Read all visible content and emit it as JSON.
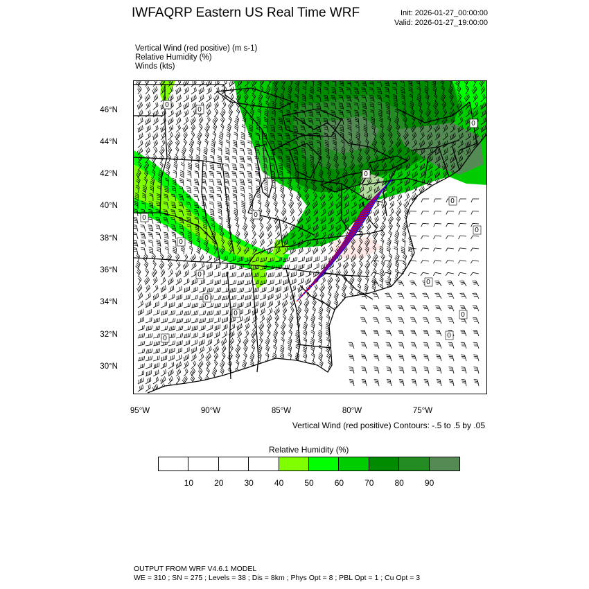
{
  "header": {
    "title": "IWFAQRP Eastern US Real Time WRF",
    "init": "Init: 2026-01-27_00:00:00",
    "valid": "Valid: 2026-01-27_19:00:00"
  },
  "fields": {
    "vertical_wind": "Vertical Wind (red positive)   (m s-1)",
    "rh": "Relative Humidity   (%)",
    "winds": "Winds   (kts)"
  },
  "map": {
    "lat_labels": [
      "46°N",
      "44°N",
      "42°N",
      "40°N",
      "38°N",
      "36°N",
      "34°N",
      "32°N",
      "30°N"
    ],
    "lon_labels": [
      "95°W",
      "90°W",
      "85°W",
      "80°W",
      "75°W"
    ],
    "contour_note": "Vertical Wind (red positive) Contours: -.5 to .5 by .05",
    "zero_label": "0",
    "colors": {
      "rh_40": "#7fff00",
      "rh_50": "#00ff00",
      "rh_60": "#00cd00",
      "rh_70": "#008b00",
      "rh_80": "#228b22",
      "rh_90": "#548b54",
      "updraft": "#ff0000",
      "downdraft": "#0000ff"
    }
  },
  "colorbar": {
    "title": "Relative Humidity   (%)",
    "labels": [
      "10",
      "20",
      "30",
      "40",
      "50",
      "60",
      "70",
      "80",
      "90"
    ],
    "colors": [
      "#ffffff",
      "#ffffff",
      "#ffffff",
      "#ffffff",
      "#7fff00",
      "#00ff00",
      "#00cd00",
      "#008b00",
      "#228b22",
      "#548b54"
    ]
  },
  "footer": {
    "line1": "OUTPUT FROM WRF V4.6.1 MODEL",
    "line2": "WE = 310 ; SN = 275 ; Levels = 38 ; Dis = 8km ; Phys Opt = 8 ; PBL Opt = 1 ; Cu Opt = 3"
  }
}
